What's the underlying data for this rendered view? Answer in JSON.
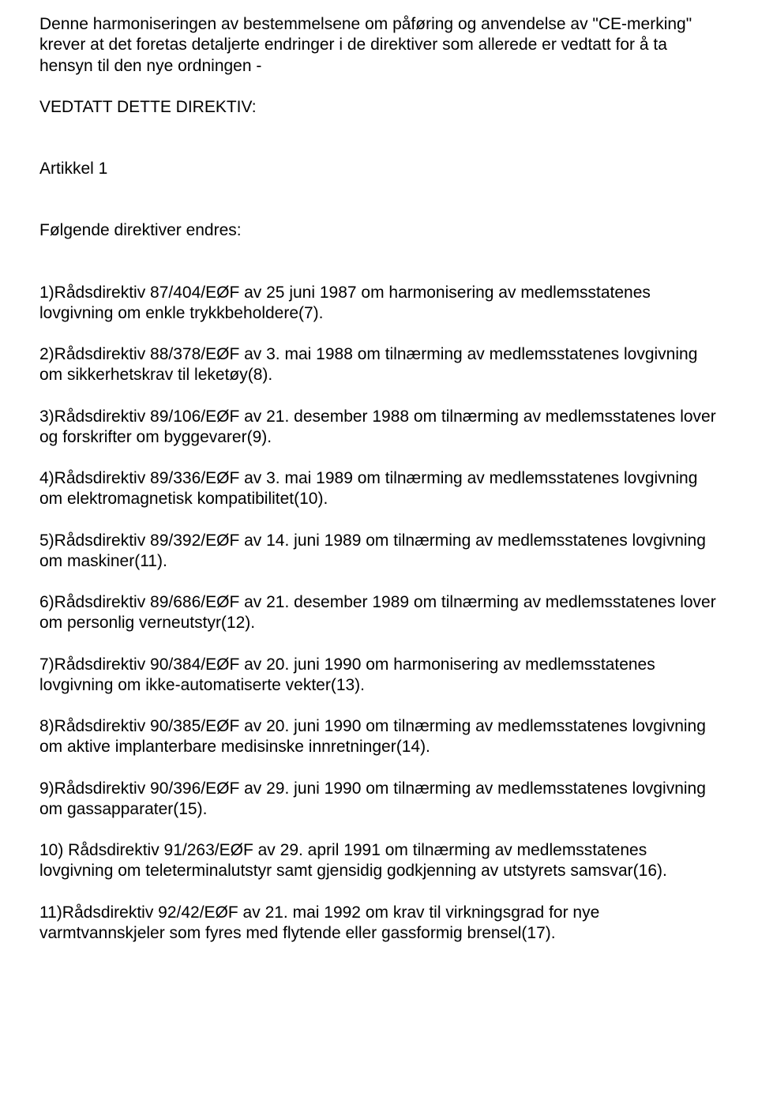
{
  "p1": "Denne harmoniseringen av bestemmelsene om påføring og anvendelse av \"CE-merking\" krever at det foretas detaljerte endringer i de direktiver som allerede er vedtatt for å ta hensyn til den nye ordningen -",
  "p2": "VEDTATT DETTE DIREKTIV:",
  "p3": "Artikkel 1",
  "p4": "Følgende direktiver endres:",
  "p5": "1)Rådsdirektiv 87/404/EØF av 25 juni 1987 om harmonisering av medlemsstatenes lovgivning om enkle trykkbeholdere(7).",
  "p6": "2)Rådsdirektiv 88/378/EØF av 3. mai 1988 om tilnærming av medlemsstatenes lovgivning om sikkerhetskrav til leketøy(8).",
  "p7": "3)Rådsdirektiv 89/106/EØF av 21. desember 1988 om tilnærming av medlemsstatenes lover og forskrifter om byggevarer(9).",
  "p8": "4)Rådsdirektiv 89/336/EØF av 3. mai 1989 om tilnærming av medlemsstatenes lovgivning om elektromagnetisk kompatibilitet(10).",
  "p9": "5)Rådsdirektiv 89/392/EØF av 14. juni 1989 om tilnærming av medlemsstatenes lovgivning om maskiner(11).",
  "p10": "6)Rådsdirektiv 89/686/EØF av 21. desember 1989 om tilnærming av medlemsstatenes lover om personlig verneutstyr(12).",
  "p11": "7)Rådsdirektiv 90/384/EØF av 20. juni 1990 om harmonisering av medlemsstatenes lovgivning om ikke-automatiserte vekter(13).",
  "p12": "8)Rådsdirektiv 90/385/EØF av 20. juni 1990 om tilnærming av medlemsstatenes lovgivning om aktive implanterbare medisinske innretninger(14).",
  "p13": "9)Rådsdirektiv 90/396/EØF av 29. juni 1990 om tilnærming av medlemsstatenes lovgivning om gassapparater(15).",
  "p14": "10) Rådsdirektiv 91/263/EØF av 29. april 1991 om tilnærming av medlemsstatenes lovgivning om teleterminalutstyr samt gjensidig godkjenning av utstyrets samsvar(16).",
  "p15": "11)Rådsdirektiv 92/42/EØF av 21. mai 1992 om krav til virkningsgrad for nye varmtvannskjeler som fyres med flytende eller gassformig brensel(17)."
}
